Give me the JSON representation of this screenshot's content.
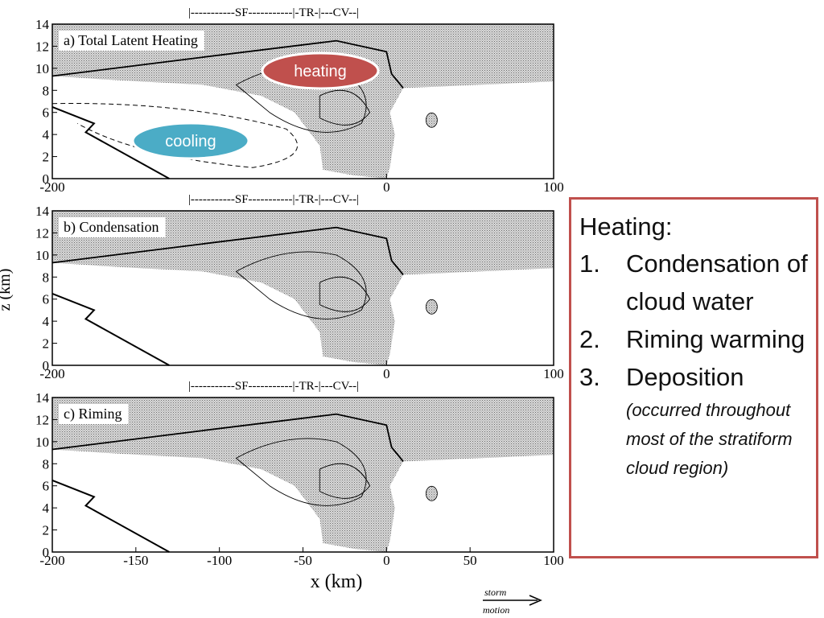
{
  "panels": [
    {
      "label": "a) Total Latent Heating",
      "region_bar": "|-----------SF-----------|-TR-|---CV--|",
      "yticks": [
        "0",
        "2",
        "4",
        "6",
        "8",
        "10",
        "12",
        "14"
      ],
      "xticks": [
        "-200",
        "0",
        "100"
      ]
    },
    {
      "label": "b) Condensation",
      "region_bar": "|-----------SF-----------|-TR-|---CV--|",
      "yticks": [
        "0",
        "2",
        "4",
        "6",
        "8",
        "10",
        "12",
        "14"
      ],
      "xticks": [
        "-200",
        "0",
        "100"
      ]
    },
    {
      "label": "c) Riming",
      "region_bar": "|-----------SF-----------|-TR-|---CV--|",
      "yticks": [
        "0",
        "2",
        "4",
        "6",
        "8",
        "10",
        "12",
        "14"
      ],
      "xticks": [
        "-200",
        "-150",
        "-100",
        "-50",
        "0",
        "50",
        "100"
      ]
    }
  ],
  "y_axis_label": "z  (km)",
  "x_axis_label": "x  (km)",
  "annotations": {
    "heating": "heating",
    "cooling": "cooling"
  },
  "storm_motion": {
    "top": "storm",
    "bottom": "motion"
  },
  "textbox": {
    "heading": "Heating:",
    "items": [
      {
        "number": "1.",
        "text": "Condensation of cloud water"
      },
      {
        "number": "2.",
        "text": "Riming warming"
      },
      {
        "number": "3.",
        "text": "Deposition"
      }
    ],
    "note": "(occurred throughout most of the stratiform cloud region)"
  }
}
